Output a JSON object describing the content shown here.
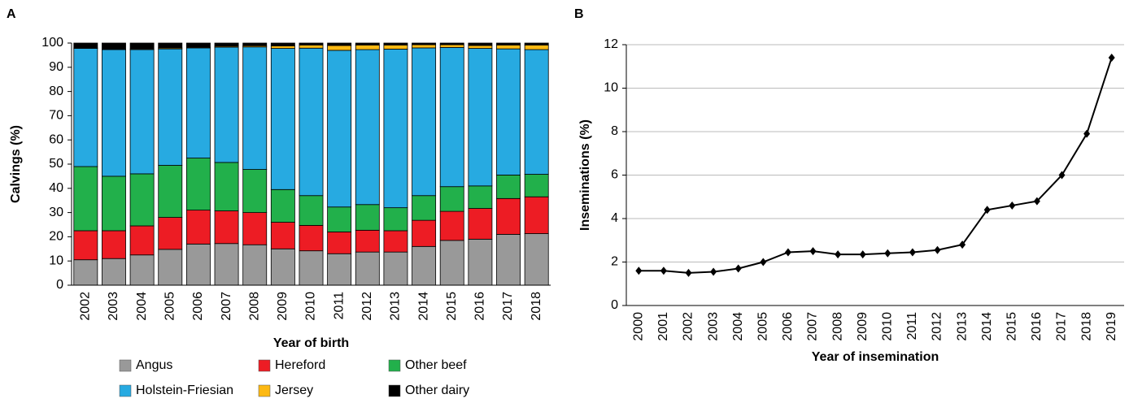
{
  "chart_data": [
    {
      "type": "stacked-bar",
      "panel": "A",
      "y_label": "Calvings (%)",
      "x_label": "Year of birth",
      "categories": [
        "2002",
        "2003",
        "2004",
        "2005",
        "2006",
        "2007",
        "2008",
        "2009",
        "2010",
        "2011",
        "2012",
        "2013",
        "2014",
        "2015",
        "2016",
        "2017",
        "2018"
      ],
      "series": [
        {
          "name": "Angus",
          "color": "#999999",
          "values": [
            10.5,
            11,
            12.5,
            14.8,
            17,
            17.2,
            16.7,
            15,
            14.2,
            13,
            13.7,
            13.7,
            16,
            18.5,
            19,
            21,
            21.3
          ]
        },
        {
          "name": "Hereford",
          "color": "#ed1c24",
          "values": [
            12,
            11.5,
            12,
            13.2,
            14,
            13.5,
            13.3,
            11,
            10.5,
            9,
            9,
            8.8,
            10.8,
            12,
            12.7,
            14.8,
            15.2
          ]
        },
        {
          "name": "Other beef",
          "color": "#22b04b",
          "values": [
            26.5,
            22.5,
            21.5,
            21.5,
            21.5,
            20,
            17.8,
            13.5,
            12.3,
            10.3,
            10.6,
            9.5,
            10.2,
            10.2,
            9.3,
            9.7,
            9.3
          ]
        },
        {
          "name": "Holstein-Friesian",
          "color": "#27aae1",
          "values": [
            48.8,
            52.3,
            51.3,
            48.1,
            45.5,
            47.6,
            50.6,
            58.3,
            60.9,
            64.7,
            64,
            65.5,
            61,
            57.5,
            56.8,
            52.1,
            51.5
          ]
        },
        {
          "name": "Jersey",
          "color": "#fdb913",
          "values": [
            0.2,
            0.2,
            0.3,
            0.4,
            0.3,
            0.4,
            0.5,
            1,
            1.3,
            2,
            1.9,
            1.7,
            1.3,
            1.1,
            1.2,
            1.6,
            1.9
          ]
        },
        {
          "name": "Other dairy",
          "color": "#000000",
          "values": [
            2,
            2.5,
            2.4,
            2,
            1.7,
            1.3,
            1.1,
            1.2,
            0.8,
            1,
            0.8,
            0.8,
            0.7,
            0.7,
            1,
            0.8,
            0.8
          ]
        }
      ],
      "ylim": [
        0,
        100
      ],
      "yticks": [
        0,
        10,
        20,
        30,
        40,
        50,
        60,
        70,
        80,
        90,
        100
      ],
      "grid": false
    },
    {
      "type": "line",
      "panel": "B",
      "y_label": "Inseminations (%)",
      "x_label": "Year of insemination",
      "categories": [
        "2000",
        "2001",
        "2002",
        "2003",
        "2004",
        "2005",
        "2006",
        "2007",
        "2008",
        "2009",
        "2010",
        "2011",
        "2012",
        "2013",
        "2014",
        "2015",
        "2016",
        "2017",
        "2018",
        "2019"
      ],
      "values": [
        1.6,
        1.6,
        1.5,
        1.55,
        1.7,
        2.0,
        2.45,
        2.5,
        2.35,
        2.35,
        2.4,
        2.45,
        2.55,
        2.8,
        4.4,
        4.6,
        4.8,
        6.0,
        7.9,
        11.4
      ],
      "color": "#000000",
      "ylim": [
        0,
        12
      ],
      "yticks": [
        0,
        2,
        4,
        6,
        8,
        10,
        12
      ],
      "grid": true
    }
  ]
}
